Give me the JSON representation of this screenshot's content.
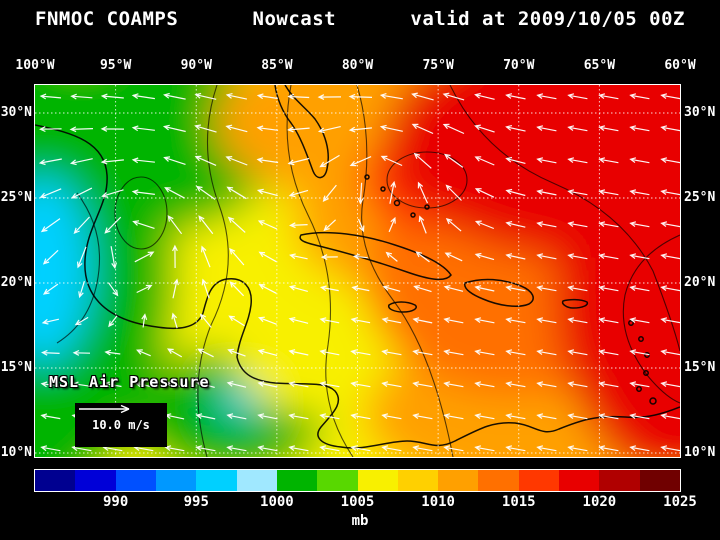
{
  "title": {
    "model": "FNMOC COAMPS",
    "product": "Nowcast",
    "valid": "valid at 2009/10/05 00Z"
  },
  "axes": {
    "lon_top": [
      "100°W",
      "95°W",
      "90°W",
      "85°W",
      "80°W",
      "75°W",
      "70°W",
      "65°W",
      "60°W"
    ],
    "lat_left": [
      "30°N",
      "25°N",
      "20°N",
      "15°N",
      "10°N"
    ],
    "lat_right": [
      "30°N",
      "25°N",
      "20°N",
      "15°N",
      "10°N"
    ]
  },
  "map": {
    "field_label": "MSL Air Pressure",
    "wind_scale": {
      "speed_label": "10.0 m/s"
    }
  },
  "colorbar": {
    "unit": "mb",
    "tick_labels": [
      "990",
      "995",
      "1000",
      "1005",
      "1010",
      "1015",
      "1020",
      "1025"
    ],
    "colors": [
      "#000090",
      "#0000d8",
      "#0050ff",
      "#0098ff",
      "#00d0ff",
      "#a0e8ff",
      "#00b400",
      "#58d800",
      "#f8f000",
      "#ffd000",
      "#ffa000",
      "#ff7000",
      "#ff3800",
      "#e80000",
      "#b00000",
      "#700000"
    ]
  },
  "chart_data": {
    "type": "heatmap",
    "title": "FNMOC COAMPS Nowcast valid at 2009/10/05 00Z",
    "variable": "MSL Air Pressure",
    "unit": "mb",
    "colorbar_values": [
      990,
      995,
      1000,
      1005,
      1010,
      1015,
      1020,
      1025
    ],
    "lon_ticks": [
      "100°W",
      "95°W",
      "90°W",
      "85°W",
      "80°W",
      "75°W",
      "70°W",
      "65°W",
      "60°W"
    ],
    "lat_ticks": [
      "30°N",
      "25°N",
      "20°N",
      "15°N",
      "10°N"
    ],
    "overlay": "wind vectors",
    "wind_vector_scale_mps": 10.0,
    "legend_position": "bottom"
  }
}
